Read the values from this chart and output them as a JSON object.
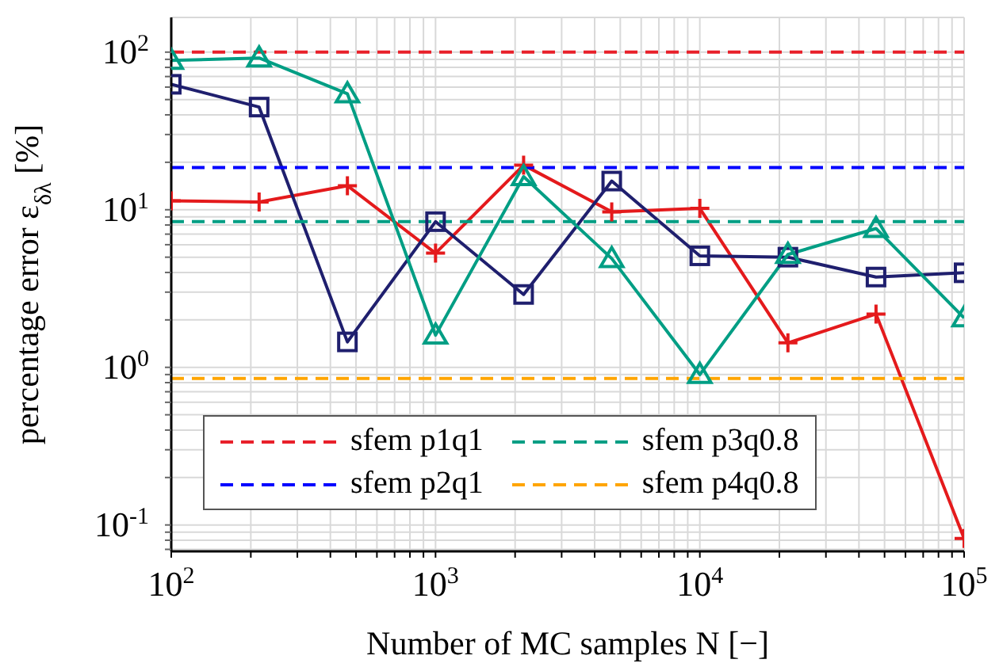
{
  "chart_data": {
    "type": "line",
    "xlabel": "Number of MC samples N [−]",
    "ylabel": "percentage error ε$_{δλ}$ [%]",
    "log": "xy",
    "grid": true,
    "legend": "bottom left",
    "xlim": [
      100,
      100000
    ],
    "ylim": [
      0.068,
      166
    ],
    "xticks": [
      {
        "value": 100,
        "label": "10$^{2}$"
      },
      {
        "value": 200,
        "label": null
      },
      {
        "value": 300,
        "label": null
      },
      {
        "value": 400,
        "label": null
      },
      {
        "value": 500,
        "label": null
      },
      {
        "value": 600,
        "label": null
      },
      {
        "value": 700,
        "label": null
      },
      {
        "value": 800,
        "label": null
      },
      {
        "value": 900,
        "label": null
      },
      {
        "value": 1000,
        "label": "10$^{3}$"
      },
      {
        "value": 2000,
        "label": null
      },
      {
        "value": 3000,
        "label": null
      },
      {
        "value": 4000,
        "label": null
      },
      {
        "value": 5000,
        "label": null
      },
      {
        "value": 6000,
        "label": null
      },
      {
        "value": 7000,
        "label": null
      },
      {
        "value": 8000,
        "label": null
      },
      {
        "value": 9000,
        "label": null
      },
      {
        "value": 10000,
        "label": "10$^{4}$"
      },
      {
        "value": 20000,
        "label": null
      },
      {
        "value": 30000,
        "label": null
      },
      {
        "value": 40000,
        "label": null
      },
      {
        "value": 50000,
        "label": null
      },
      {
        "value": 60000,
        "label": null
      },
      {
        "value": 70000,
        "label": null
      },
      {
        "value": 80000,
        "label": null
      },
      {
        "value": 90000,
        "label": null
      },
      {
        "value": 100000,
        "label": "10$^{5}$"
      }
    ],
    "yticks": [
      {
        "value": 0.07,
        "label": null
      },
      {
        "value": 0.08,
        "label": null
      },
      {
        "value": 0.09,
        "label": null
      },
      {
        "value": 0.1,
        "label": "10$^{-1}$"
      },
      {
        "value": 0.2,
        "label": null
      },
      {
        "value": 0.3,
        "label": null
      },
      {
        "value": 0.4,
        "label": null
      },
      {
        "value": 0.5,
        "label": null
      },
      {
        "value": 0.6,
        "label": null
      },
      {
        "value": 0.7,
        "label": null
      },
      {
        "value": 0.8,
        "label": null
      },
      {
        "value": 0.9,
        "label": null
      },
      {
        "value": 1,
        "label": "10$^{0}$"
      },
      {
        "value": 2,
        "label": null
      },
      {
        "value": 3,
        "label": null
      },
      {
        "value": 4,
        "label": null
      },
      {
        "value": 5,
        "label": null
      },
      {
        "value": 6,
        "label": null
      },
      {
        "value": 7,
        "label": null
      },
      {
        "value": 8,
        "label": null
      },
      {
        "value": 9,
        "label": null
      },
      {
        "value": 10,
        "label": "10$^{1}$"
      },
      {
        "value": 20,
        "label": null
      },
      {
        "value": 30,
        "label": null
      },
      {
        "value": 40,
        "label": null
      },
      {
        "value": 50,
        "label": null
      },
      {
        "value": 60,
        "label": null
      },
      {
        "value": 70,
        "label": null
      },
      {
        "value": 80,
        "label": null
      },
      {
        "value": 90,
        "label": null
      },
      {
        "value": 100,
        "label": "10$^{2}$"
      }
    ],
    "series": [
      {
        "color": "#e41a1c",
        "marker": "cross",
        "line_style": "solid",
        "x": [
          100,
          215,
          464,
          1000,
          2154,
          4642,
          10000,
          21544,
          46416,
          100000
        ],
        "values": [
          11.4,
          11.2,
          14.2,
          5.3,
          19.2,
          9.7,
          10.2,
          1.43,
          2.18,
          0.082
        ]
      },
      {
        "color": "#1f1f6e",
        "marker": "square",
        "line_style": "solid",
        "x": [
          100,
          215,
          464,
          1000,
          2154,
          4642,
          10000,
          21544,
          46416,
          100000
        ],
        "values": [
          62.5,
          44.8,
          1.45,
          8.4,
          2.9,
          15.2,
          5.1,
          5.0,
          3.74,
          3.98
        ]
      },
      {
        "color": "#009e84",
        "marker": "triangle",
        "line_style": "solid",
        "x": [
          100,
          215,
          464,
          1000,
          2154,
          4642,
          10000,
          21544,
          46416,
          100000
        ],
        "values": [
          88.5,
          91.8,
          54.4,
          1.6,
          16.2,
          4.9,
          0.9,
          5.2,
          7.6,
          2.06
        ]
      },
      {
        "name": "sfem p1q1",
        "color": "#e8202a",
        "marker": "none",
        "line_style": "dashed",
        "x": [
          100,
          100000
        ],
        "values": [
          100,
          100
        ]
      },
      {
        "name": "sfem p2q1",
        "color": "#0000ff",
        "marker": "none",
        "line_style": "dashed",
        "x": [
          100,
          100000
        ],
        "values": [
          18.5,
          18.5
        ]
      },
      {
        "name": "sfem p3q0.8",
        "color": "#009e84",
        "marker": "none",
        "line_style": "dashed",
        "x": [
          100,
          100000
        ],
        "values": [
          8.4,
          8.4
        ]
      },
      {
        "name": "sfem p4q0.8",
        "color": "#ffa500",
        "marker": "none",
        "line_style": "dashed",
        "x": [
          100,
          100000
        ],
        "values": [
          0.85,
          0.85
        ]
      }
    ]
  }
}
